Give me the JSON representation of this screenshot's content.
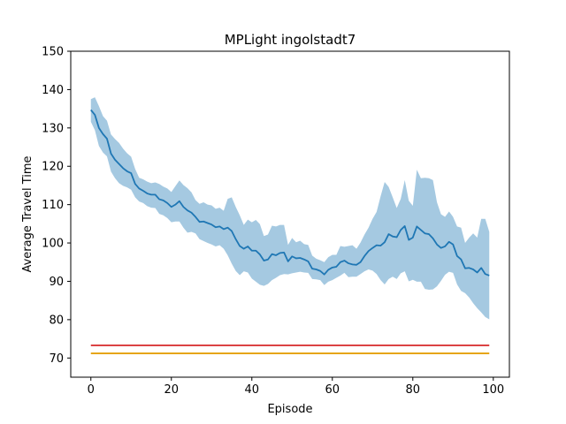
{
  "chart_data": {
    "type": "line",
    "title": "MPLight ingolstadt7",
    "xlabel": "Episode",
    "ylabel": "Average Travel Time",
    "xlim": [
      -5,
      104
    ],
    "ylim": [
      65,
      150
    ],
    "xticks": [
      0,
      20,
      40,
      60,
      80,
      100
    ],
    "yticks": [
      70,
      80,
      90,
      100,
      110,
      120,
      130,
      140,
      150
    ],
    "grid": false,
    "legend": "none",
    "x": [
      0,
      1,
      2,
      3,
      4,
      5,
      6,
      7,
      8,
      9,
      10,
      11,
      12,
      13,
      14,
      15,
      16,
      17,
      18,
      19,
      20,
      21,
      22,
      23,
      24,
      25,
      26,
      27,
      28,
      29,
      30,
      31,
      32,
      33,
      34,
      35,
      36,
      37,
      38,
      39,
      40,
      41,
      42,
      43,
      44,
      45,
      46,
      47,
      48,
      49,
      50,
      51,
      52,
      53,
      54,
      55,
      56,
      57,
      58,
      59,
      60,
      61,
      62,
      63,
      64,
      65,
      66,
      67,
      68,
      69,
      70,
      71,
      72,
      73,
      74,
      75,
      76,
      77,
      78,
      79,
      80,
      81,
      82,
      83,
      84,
      85,
      86,
      87,
      88,
      89,
      90,
      91,
      92,
      93,
      94,
      95,
      96,
      97,
      98,
      99
    ],
    "series": [
      {
        "values": [
          134.7,
          133.4,
          130.0,
          128.4,
          127.2,
          123.3,
          121.7,
          120.6,
          119.5,
          118.7,
          118.2,
          115.4,
          114.2,
          113.6,
          112.9,
          112.6,
          112.6,
          111.4,
          111.1,
          110.4,
          109.4,
          110.0,
          110.9,
          109.4,
          108.5,
          107.9,
          106.8,
          105.5,
          105.6,
          105.2,
          104.8,
          104.1,
          104.3,
          103.6,
          104.0,
          103.1,
          101.0,
          99.2,
          98.5,
          99.1,
          98.0,
          98.0,
          97.0,
          95.4,
          95.7,
          97.1,
          96.8,
          97.4,
          97.5,
          95.2,
          96.5,
          96.0,
          96.1,
          95.7,
          95.2,
          93.3,
          93.1,
          92.7,
          91.8,
          93.0,
          93.6,
          93.8,
          95.0,
          95.4,
          94.7,
          94.4,
          94.3,
          95.0,
          96.6,
          97.9,
          98.7,
          99.4,
          99.3,
          100.2,
          102.3,
          101.7,
          101.5,
          103.4,
          104.4,
          100.8,
          101.4,
          104.3,
          103.4,
          102.5,
          102.3,
          101.2,
          99.6,
          98.7,
          99.1,
          100.3,
          99.6,
          96.6,
          95.7,
          93.4,
          93.5,
          93.1,
          92.3,
          93.5,
          91.9,
          91.5
        ],
        "upper": [
          137.5,
          138.0,
          135.7,
          133.1,
          131.9,
          128.3,
          127.1,
          126.1,
          124.6,
          123.4,
          122.5,
          119.3,
          117.0,
          116.6,
          116.0,
          115.6,
          115.8,
          115.4,
          114.7,
          114.2,
          113.3,
          114.8,
          116.3,
          115.1,
          114.3,
          113.2,
          111.2,
          110.2,
          110.6,
          110.0,
          109.8,
          108.9,
          109.2,
          108.4,
          111.5,
          111.9,
          109.4,
          107.2,
          104.7,
          106.1,
          105.4,
          106.0,
          104.9,
          101.8,
          102.2,
          104.5,
          104.3,
          104.7,
          104.7,
          99.5,
          101.3,
          100.2,
          100.6,
          99.7,
          99.5,
          96.7,
          95.9,
          95.5,
          95.0,
          96.3,
          96.9,
          96.9,
          99.2,
          99.0,
          99.2,
          99.4,
          98.5,
          100.1,
          102.2,
          104.0,
          106.3,
          108.1,
          112.2,
          115.9,
          114.6,
          111.9,
          109.1,
          111.5,
          116.4,
          111.0,
          109.7,
          119.1,
          116.9,
          117.0,
          116.9,
          116.4,
          110.6,
          107.5,
          106.8,
          108.2,
          106.8,
          104.3,
          104.0,
          100.0,
          101.4,
          102.5,
          101.4,
          106.3,
          106.3,
          102.9
        ],
        "lower": [
          131.6,
          129.4,
          125.3,
          123.6,
          122.6,
          118.6,
          116.9,
          115.6,
          114.9,
          114.5,
          113.9,
          111.9,
          110.8,
          110.4,
          109.6,
          109.2,
          109.1,
          107.6,
          107.2,
          106.5,
          105.4,
          105.6,
          105.6,
          104.0,
          102.7,
          102.9,
          102.5,
          101.0,
          100.5,
          100.0,
          99.6,
          99.1,
          99.4,
          98.5,
          96.8,
          94.6,
          92.7,
          91.6,
          92.6,
          92.3,
          90.7,
          89.9,
          89.1,
          88.8,
          89.3,
          90.3,
          90.9,
          91.6,
          91.9,
          91.8,
          92.1,
          92.3,
          92.5,
          92.3,
          92.2,
          90.6,
          90.5,
          90.3,
          89.0,
          89.9,
          90.3,
          90.9,
          91.5,
          92.2,
          91.1,
          91.2,
          91.2,
          91.9,
          92.6,
          93.1,
          92.8,
          91.9,
          90.3,
          89.2,
          90.6,
          91.2,
          90.6,
          92.1,
          92.6,
          90.0,
          90.4,
          89.9,
          89.9,
          88.0,
          87.8,
          87.9,
          88.7,
          90.1,
          91.7,
          92.5,
          92.2,
          89.2,
          87.5,
          86.9,
          85.8,
          84.3,
          83.0,
          81.9,
          80.7,
          80.1
        ]
      },
      {
        "values": [
          73.3,
          73.3
        ],
        "x": [
          0,
          99
        ],
        "color": "#d62728"
      },
      {
        "values": [
          71.2,
          71.2
        ],
        "x": [
          0,
          99
        ],
        "color": "#e5a000"
      }
    ],
    "colors": {
      "main_line": "#1f77b4",
      "band_fill": "#1f77b4",
      "red_line": "#d62728",
      "orange_line": "#e5a000"
    }
  }
}
